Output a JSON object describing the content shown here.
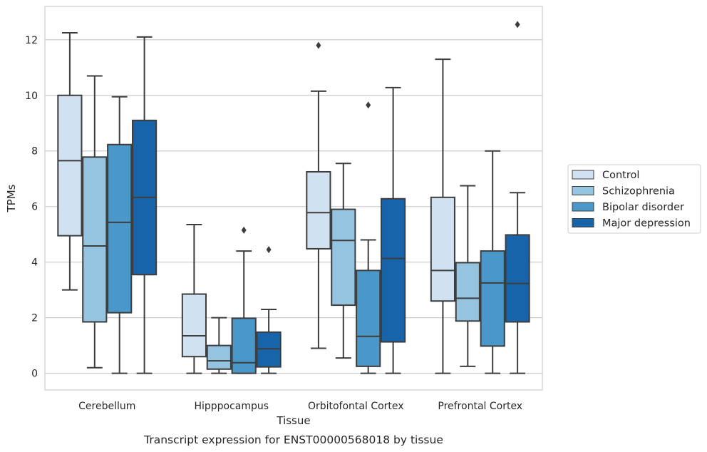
{
  "chart_data": {
    "type": "box",
    "caption": "Transcript expression for ENST00000568018 by tissue",
    "xlabel": "Tissue",
    "ylabel": "TPMs",
    "ylim": [
      -0.6,
      13.2
    ],
    "yticks": [
      0,
      2,
      4,
      6,
      8,
      10,
      12
    ],
    "grid": "horizontal",
    "legend": "right",
    "categories": [
      "Cerebellum",
      "Hipppocampus",
      "Orbitofontal Cortex",
      "Prefrontal Cortex"
    ],
    "series": [
      {
        "name": "Control",
        "color": "#d0e1f2",
        "boxes": [
          {
            "whisker_low": 3.0,
            "q1": 4.95,
            "median": 7.65,
            "q3": 10.0,
            "whisker_high": 12.25,
            "outliers": []
          },
          {
            "whisker_low": 0.0,
            "q1": 0.6,
            "median": 1.35,
            "q3": 2.85,
            "whisker_high": 5.35,
            "outliers": []
          },
          {
            "whisker_low": 0.9,
            "q1": 4.48,
            "median": 5.78,
            "q3": 7.25,
            "whisker_high": 10.15,
            "outliers": [
              11.8
            ]
          },
          {
            "whisker_low": 0.0,
            "q1": 2.6,
            "median": 3.7,
            "q3": 6.33,
            "whisker_high": 11.3,
            "outliers": []
          }
        ]
      },
      {
        "name": "Schizophrenia",
        "color": "#94c4df",
        "boxes": [
          {
            "whisker_low": 0.2,
            "q1": 1.85,
            "median": 4.58,
            "q3": 7.78,
            "whisker_high": 10.7,
            "outliers": []
          },
          {
            "whisker_low": 0.0,
            "q1": 0.15,
            "median": 0.45,
            "q3": 1.0,
            "whisker_high": 2.0,
            "outliers": []
          },
          {
            "whisker_low": 0.55,
            "q1": 2.45,
            "median": 4.78,
            "q3": 5.9,
            "whisker_high": 7.55,
            "outliers": []
          },
          {
            "whisker_low": 0.25,
            "q1": 1.88,
            "median": 2.7,
            "q3": 3.98,
            "whisker_high": 6.75,
            "outliers": []
          }
        ]
      },
      {
        "name": "Bipolar disorder",
        "color": "#4a98c9",
        "boxes": [
          {
            "whisker_low": 0.0,
            "q1": 2.18,
            "median": 5.43,
            "q3": 8.23,
            "whisker_high": 9.95,
            "outliers": []
          },
          {
            "whisker_low": 0.0,
            "q1": 0.0,
            "median": 0.38,
            "q3": 1.98,
            "whisker_high": 4.4,
            "outliers": [
              5.15
            ]
          },
          {
            "whisker_low": 0.0,
            "q1": 0.25,
            "median": 1.33,
            "q3": 3.7,
            "whisker_high": 4.8,
            "outliers": [
              9.65
            ]
          },
          {
            "whisker_low": 0.0,
            "q1": 0.98,
            "median": 3.25,
            "q3": 4.4,
            "whisker_high": 8.0,
            "outliers": []
          }
        ]
      },
      {
        "name": "Major depression",
        "color": "#1764ab",
        "boxes": [
          {
            "whisker_low": 0.0,
            "q1": 3.55,
            "median": 6.33,
            "q3": 9.1,
            "whisker_high": 12.1,
            "outliers": []
          },
          {
            "whisker_low": 0.0,
            "q1": 0.23,
            "median": 0.88,
            "q3": 1.48,
            "whisker_high": 2.3,
            "outliers": [
              4.45
            ]
          },
          {
            "whisker_low": 0.0,
            "q1": 1.13,
            "median": 4.13,
            "q3": 6.28,
            "whisker_high": 10.28,
            "outliers": []
          },
          {
            "whisker_low": 0.0,
            "q1": 1.85,
            "median": 3.23,
            "q3": 4.98,
            "whisker_high": 6.5,
            "outliers": [
              12.55
            ]
          }
        ]
      }
    ]
  }
}
